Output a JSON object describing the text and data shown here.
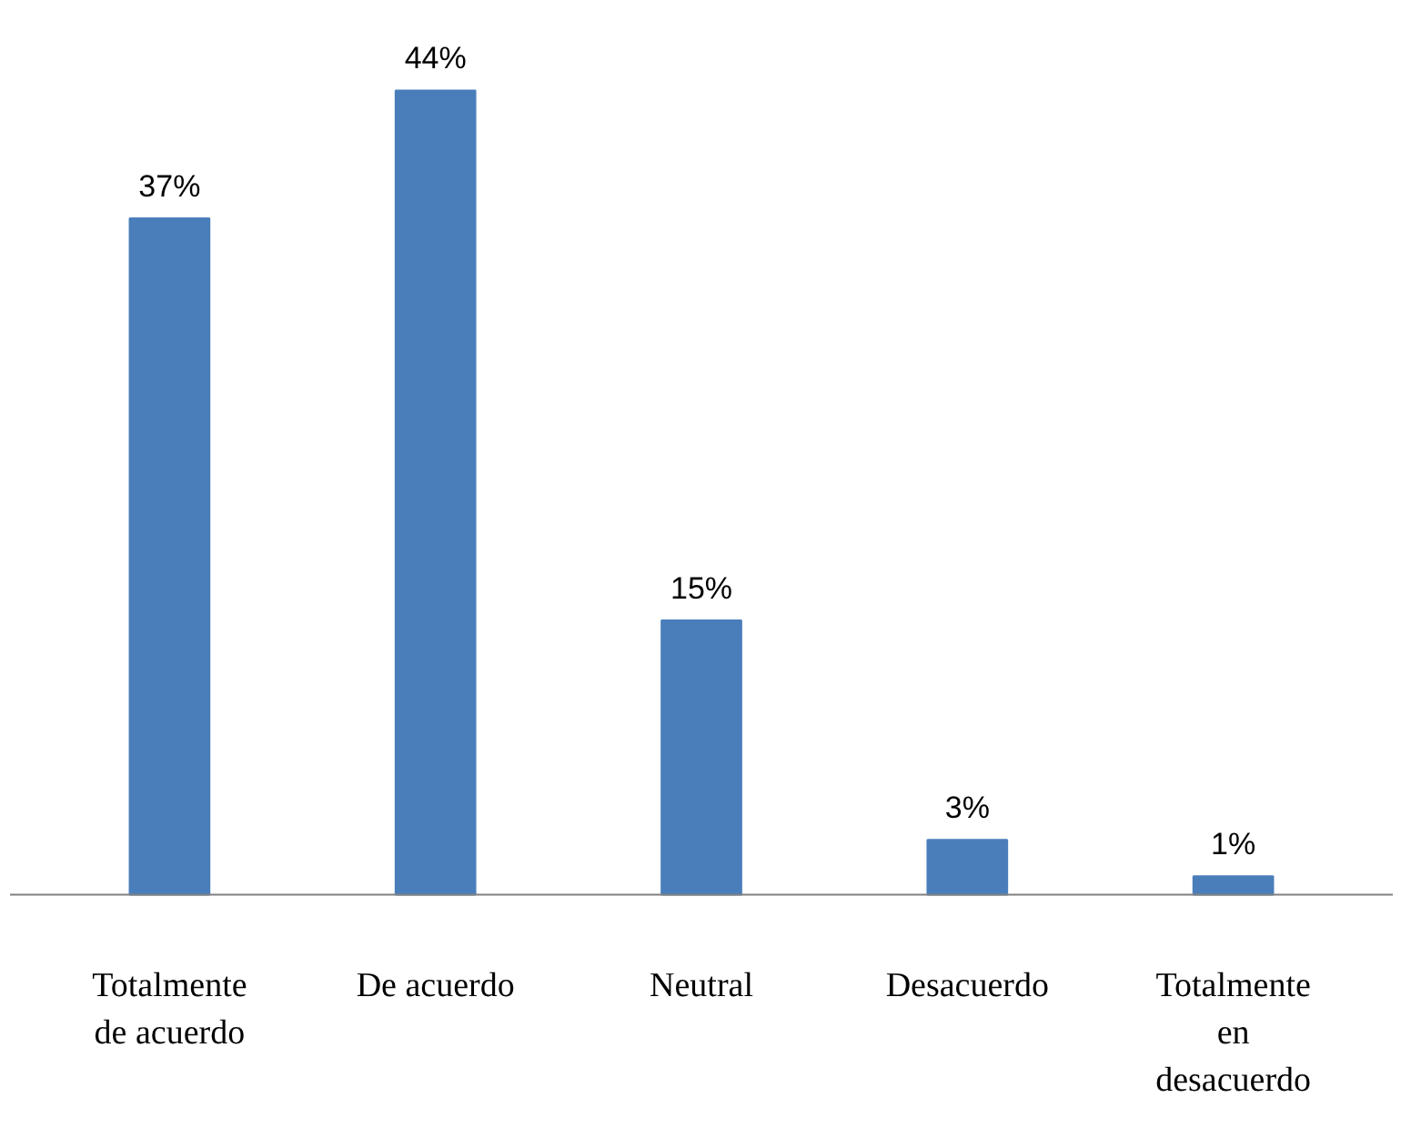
{
  "chart_data": {
    "type": "bar",
    "categories": [
      "Totalmente de acuerdo",
      "De acuerdo",
      "Neutral",
      "Desacuerdo",
      "Totalmente en desacuerdo"
    ],
    "values": [
      37,
      44,
      15,
      3,
      1
    ],
    "value_labels": [
      "37%",
      "44%",
      "15%",
      "3%",
      "1%"
    ],
    "color": "#4a7ebb"
  }
}
